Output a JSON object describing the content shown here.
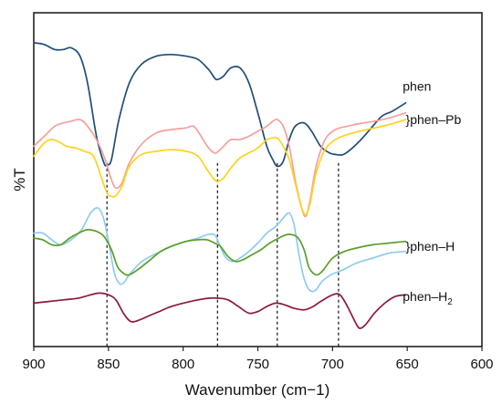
{
  "chart_data": {
    "type": "line",
    "title": "",
    "xlabel": "Wavenumber (cm−1)",
    "ylabel": "%T",
    "xlim": [
      900,
      600
    ],
    "x_reversed": true,
    "y_ticks_shown": false,
    "grid": false,
    "x_ticks": [
      "900",
      "850",
      "800",
      "750",
      "700",
      "650",
      "600"
    ],
    "y_units": "relative %T (0 = bottom, 100 = top, curves vertically offset)",
    "reference_lines": [
      851,
      777,
      737,
      696
    ],
    "series": [
      {
        "color": "#1f4e79",
        "x": [
          900,
          893,
          886,
          880,
          875,
          869,
          864,
          858,
          853,
          851,
          848,
          843,
          836,
          828,
          818,
          808,
          798,
          790,
          783,
          779,
          777,
          773,
          768,
          762,
          756,
          750,
          744,
          740,
          737,
          733,
          729,
          725,
          719,
          714,
          708,
          702,
          697,
          693,
          688,
          682,
          675,
          667,
          660,
          651
        ],
        "y": [
          91,
          90.5,
          89,
          89,
          89.5,
          87,
          79,
          63,
          55,
          54.5,
          56,
          68,
          79,
          84.5,
          87,
          87.5,
          87,
          86,
          83,
          80.5,
          80,
          81,
          83.5,
          83.5,
          79,
          70,
          60,
          56,
          54,
          55.5,
          62,
          66,
          67,
          64.5,
          60,
          58,
          57.5,
          57.5,
          59,
          61.5,
          65,
          69,
          70.5,
          73
        ]
      },
      {
        "color": "#f4a09c",
        "x": [
          900,
          893,
          886,
          880,
          875,
          869,
          864,
          858,
          853,
          848,
          845,
          841,
          836,
          828,
          818,
          808,
          798,
          793,
          788,
          783,
          779,
          777,
          773,
          768,
          762,
          756,
          750,
          744,
          740,
          737,
          733,
          729,
          725,
          721,
          718,
          715,
          711,
          705,
          698,
          690,
          682,
          672,
          662,
          651
        ],
        "y": [
          60,
          63,
          66,
          67,
          67.5,
          68,
          66,
          62,
          57,
          50,
          47.5,
          49,
          55,
          60.5,
          64,
          65,
          65.5,
          66,
          63,
          59.5,
          58,
          58.3,
          60,
          62,
          62,
          63,
          64.5,
          66,
          67.5,
          68,
          66,
          60,
          50,
          42,
          39,
          44,
          54,
          62,
          65,
          66,
          66.8,
          67.5,
          68.5,
          70
        ]
      },
      {
        "color": "#ffd21e",
        "x": [
          900,
          894,
          889,
          884,
          878,
          872,
          866,
          860,
          855,
          851,
          848,
          845,
          841,
          836,
          828,
          818,
          808,
          798,
          790,
          784,
          779,
          777,
          773,
          768,
          762,
          756,
          750,
          744,
          740,
          737,
          733,
          729,
          725,
          721,
          718,
          715,
          711,
          705,
          698,
          690,
          682,
          672,
          662,
          651
        ],
        "y": [
          57,
          60.5,
          62,
          61.5,
          60,
          59.5,
          58.5,
          57,
          51,
          46,
          45,
          45.2,
          48,
          54,
          57.5,
          58.5,
          59,
          58.5,
          57,
          53,
          50,
          49.5,
          50.5,
          53.5,
          56.5,
          58,
          59.5,
          62,
          62.5,
          62.5,
          60,
          56,
          49,
          42,
          39.5,
          43,
          52,
          59,
          62,
          63.5,
          64.5,
          65.5,
          66.5,
          68
        ]
      },
      {
        "color": "#8fccec",
        "x": [
          900,
          894,
          888,
          882,
          875,
          868,
          862,
          857,
          853,
          849,
          846,
          843,
          840,
          836,
          829,
          822,
          815,
          808,
          798,
          790,
          784,
          779,
          776,
          772,
          767,
          762,
          756,
          750,
          744,
          738,
          733,
          729,
          726,
          723,
          720,
          717,
          714,
          711,
          707,
          701,
          693,
          684,
          673,
          662,
          651
        ],
        "y": [
          34,
          34,
          32,
          30.5,
          32,
          35,
          40,
          41.5,
          38,
          29,
          22,
          19,
          19,
          21.5,
          25,
          27,
          28.5,
          30,
          31.5,
          32.5,
          33.5,
          33.5,
          31,
          27,
          25.5,
          26.5,
          28.5,
          31,
          34,
          36,
          38.5,
          40,
          37,
          29,
          22,
          18,
          16.5,
          17,
          19.5,
          21.5,
          23,
          25,
          26.5,
          28,
          28.5
        ]
      },
      {
        "color": "#5a9e2a",
        "x": [
          900,
          894,
          888,
          882,
          876,
          870,
          864,
          858,
          853,
          848,
          844,
          840,
          836,
          829,
          822,
          815,
          808,
          798,
          790,
          784,
          779,
          775,
          770,
          765,
          760,
          754,
          748,
          742,
          736,
          731,
          727,
          723,
          719,
          716,
          713,
          710,
          706,
          700,
          692,
          684,
          673,
          662,
          651
        ],
        "y": [
          32.5,
          32,
          30.5,
          30.5,
          32.5,
          34,
          35,
          34.5,
          33,
          29,
          24,
          22,
          21.5,
          23.5,
          26,
          28.5,
          30,
          31.5,
          32,
          32,
          31,
          30,
          27,
          25.5,
          26,
          27.5,
          29,
          31,
          32.5,
          33.5,
          33.5,
          32.5,
          29,
          24,
          22,
          21.5,
          23,
          26.5,
          28.5,
          29.5,
          30.5,
          31,
          31.5
        ]
      },
      {
        "color": "#8b1a3b",
        "x": [
          900,
          890,
          880,
          870,
          862,
          856,
          850,
          845,
          840,
          835,
          829,
          824,
          816,
          808,
          800,
          790,
          782,
          777,
          770,
          763,
          756,
          750,
          744,
          738,
          732,
          726,
          719,
          713,
          708,
          700,
          695,
          690,
          685,
          682,
          678,
          672,
          665,
          658,
          651
        ],
        "y": [
          13,
          13.5,
          14,
          14.5,
          15.5,
          16,
          15.5,
          14,
          10,
          7.5,
          8,
          9,
          10.5,
          12,
          13,
          14,
          14.5,
          14.5,
          14,
          12,
          10,
          10.5,
          12,
          13,
          12.5,
          11.5,
          11,
          12,
          13.5,
          15.5,
          15.5,
          12,
          7.5,
          5.5,
          6.5,
          10,
          13,
          15,
          15.5
        ]
      }
    ],
    "annotations": [
      {
        "text": "phen",
        "sub": "",
        "x": 653,
        "y": 78
      },
      {
        "text": "}phen–Pb",
        "sub": "",
        "x": 651,
        "y": 68
      },
      {
        "text": "}phen–H",
        "sub": "",
        "x": 651,
        "y": 30
      },
      {
        "text": "phen–H",
        "sub": "2",
        "x": 653,
        "y": 15
      }
    ]
  }
}
